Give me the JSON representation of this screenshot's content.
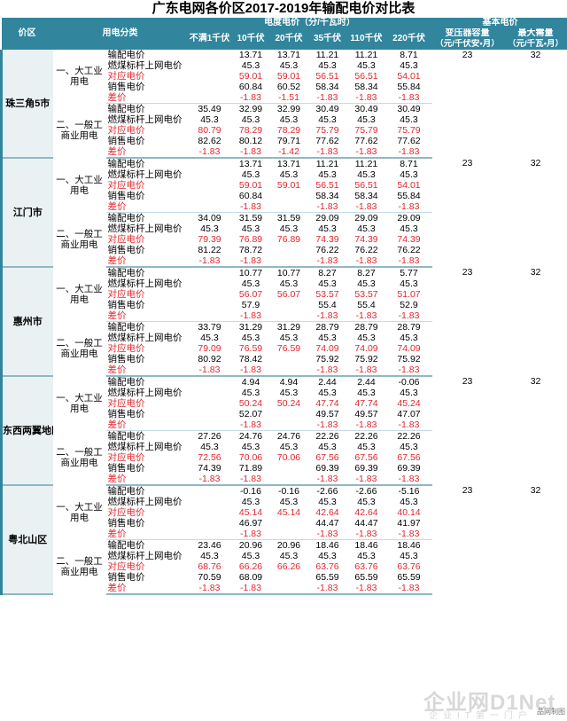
{
  "title": "广东电网各价区2017-2019年输配电价对比表",
  "header": {
    "region": "价区",
    "category": "用电分类",
    "group_voltage": "电度电价（分/千瓦时）",
    "group_basic": "基本电价",
    "v_lt1": "不满1千伏",
    "v10": "10千伏",
    "v20": "20千伏",
    "v35": "35千伏",
    "v110": "110千伏",
    "v220": "220千伏",
    "transformer": "变压器容量",
    "transformer_unit": "（元/千伏安•月）",
    "demand": "最大需量",
    "demand_unit": "（元/千瓦•月）"
  },
  "regions": [
    {
      "name": "珠三角5市",
      "groups": [
        {
          "category": "一、大工业用电",
          "transformer": "23",
          "demand": "32",
          "rows": [
            {
              "item": "输配电价",
              "red": false,
              "values": [
                "",
                "13.71",
                "13.71",
                "11.21",
                "11.21",
                "8.71"
              ]
            },
            {
              "item": "燃煤标杆上网电价",
              "red": false,
              "values": [
                "",
                "45.3",
                "45.3",
                "45.3",
                "45.3",
                "45.3"
              ]
            },
            {
              "item": "对应电价",
              "red": true,
              "values": [
                "",
                "59.01",
                "59.01",
                "56.51",
                "56.51",
                "54.01"
              ]
            },
            {
              "item": "销售电价",
              "red": false,
              "values": [
                "",
                "60.84",
                "60.52",
                "58.34",
                "58.34",
                "55.84"
              ]
            },
            {
              "item": "差价",
              "red": true,
              "values": [
                "",
                "-1.83",
                "-1.51",
                "-1.83",
                "-1.83",
                "-1.83"
              ]
            }
          ]
        },
        {
          "category": "二、一般工商业用电",
          "transformer": "",
          "demand": "",
          "rows": [
            {
              "item": "输配电价",
              "red": false,
              "values": [
                "35.49",
                "32.99",
                "32.99",
                "30.49",
                "30.49",
                "30.49"
              ]
            },
            {
              "item": "燃煤标杆上网电价",
              "red": false,
              "values": [
                "45.3",
                "45.3",
                "45.3",
                "45.3",
                "45.3",
                "45.3"
              ]
            },
            {
              "item": "对应电价",
              "red": true,
              "values": [
                "80.79",
                "78.29",
                "78.29",
                "75.79",
                "75.79",
                "75.79"
              ]
            },
            {
              "item": "销售电价",
              "red": false,
              "values": [
                "82.62",
                "80.12",
                "79.71",
                "77.62",
                "77.62",
                "77.62"
              ]
            },
            {
              "item": "差价",
              "red": true,
              "values": [
                "-1.83",
                "-1.83",
                "-1.42",
                "-1.83",
                "-1.83",
                "-1.83"
              ]
            }
          ]
        }
      ]
    },
    {
      "name": "江门市",
      "groups": [
        {
          "category": "一、大工业用电",
          "transformer": "23",
          "demand": "32",
          "rows": [
            {
              "item": "输配电价",
              "red": false,
              "values": [
                "",
                "13.71",
                "13.71",
                "11.21",
                "11.21",
                "8.71"
              ]
            },
            {
              "item": "燃煤标杆上网电价",
              "red": false,
              "values": [
                "",
                "45.3",
                "45.3",
                "45.3",
                "45.3",
                "45.3"
              ]
            },
            {
              "item": "对应电价",
              "red": true,
              "values": [
                "",
                "59.01",
                "59.01",
                "56.51",
                "56.51",
                "54.01"
              ]
            },
            {
              "item": "销售电价",
              "red": false,
              "values": [
                "",
                "60.84",
                "",
                "58.34",
                "58.34",
                "55.84"
              ]
            },
            {
              "item": "差价",
              "red": true,
              "values": [
                "",
                "-1.83",
                "",
                "-1.83",
                "-1.83",
                "-1.83"
              ]
            }
          ]
        },
        {
          "category": "二、一般工商业用电",
          "transformer": "",
          "demand": "",
          "rows": [
            {
              "item": "输配电价",
              "red": false,
              "values": [
                "34.09",
                "31.59",
                "31.59",
                "29.09",
                "29.09",
                "29.09"
              ]
            },
            {
              "item": "燃煤标杆上网电价",
              "red": false,
              "values": [
                "45.3",
                "45.3",
                "45.3",
                "45.3",
                "45.3",
                "45.3"
              ]
            },
            {
              "item": "对应电价",
              "red": true,
              "values": [
                "79.39",
                "76.89",
                "76.89",
                "74.39",
                "74.39",
                "74.39"
              ]
            },
            {
              "item": "销售电价",
              "red": false,
              "values": [
                "81.22",
                "78.72",
                "",
                "76.22",
                "76.22",
                "76.22"
              ]
            },
            {
              "item": "差价",
              "red": true,
              "values": [
                "-1.83",
                "-1.83",
                "",
                "-1.83",
                "-1.83",
                "-1.83"
              ]
            }
          ]
        }
      ]
    },
    {
      "name": "惠州市",
      "groups": [
        {
          "category": "一、大工业用电",
          "transformer": "23",
          "demand": "32",
          "rows": [
            {
              "item": "输配电价",
              "red": false,
              "values": [
                "",
                "10.77",
                "10.77",
                "8.27",
                "8.27",
                "5.77"
              ]
            },
            {
              "item": "燃煤标杆上网电价",
              "red": false,
              "values": [
                "",
                "45.3",
                "45.3",
                "45.3",
                "45.3",
                "45.3"
              ]
            },
            {
              "item": "对应电价",
              "red": true,
              "values": [
                "",
                "56.07",
                "56.07",
                "53.57",
                "53.57",
                "51.07"
              ]
            },
            {
              "item": "销售电价",
              "red": false,
              "values": [
                "",
                "57.9",
                "",
                "55.4",
                "55.4",
                "52.9"
              ]
            },
            {
              "item": "差价",
              "red": true,
              "values": [
                "",
                "-1.83",
                "",
                "-1.83",
                "-1.83",
                "-1.83"
              ]
            }
          ]
        },
        {
          "category": "二、一般工商业用电",
          "transformer": "",
          "demand": "",
          "rows": [
            {
              "item": "输配电价",
              "red": false,
              "values": [
                "33.79",
                "31.29",
                "31.29",
                "28.79",
                "28.79",
                "28.79"
              ]
            },
            {
              "item": "燃煤标杆上网电价",
              "red": false,
              "values": [
                "45.3",
                "45.3",
                "45.3",
                "45.3",
                "45.3",
                "45.3"
              ]
            },
            {
              "item": "对应电价",
              "red": true,
              "values": [
                "79.09",
                "76.59",
                "76.59",
                "74.09",
                "74.09",
                "74.09"
              ]
            },
            {
              "item": "销售电价",
              "red": false,
              "values": [
                "80.92",
                "78.42",
                "",
                "75.92",
                "75.92",
                "75.92"
              ]
            },
            {
              "item": "差价",
              "red": true,
              "values": [
                "-1.83",
                "-1.83",
                "",
                "-1.83",
                "-1.83",
                "-1.83"
              ]
            }
          ]
        }
      ]
    },
    {
      "name": "东西两翼地区",
      "groups": [
        {
          "category": "一、大工业用电",
          "transformer": "23",
          "demand": "32",
          "rows": [
            {
              "item": "输配电价",
              "red": false,
              "values": [
                "",
                "4.94",
                "4.94",
                "2.44",
                "2.44",
                "-0.06"
              ]
            },
            {
              "item": "燃煤标杆上网电价",
              "red": false,
              "values": [
                "",
                "45.3",
                "45.3",
                "45.3",
                "45.3",
                "45.3"
              ]
            },
            {
              "item": "对应电价",
              "red": true,
              "values": [
                "",
                "50.24",
                "50.24",
                "47.74",
                "47.74",
                "45.24"
              ]
            },
            {
              "item": "销售电价",
              "red": false,
              "values": [
                "",
                "52.07",
                "",
                "49.57",
                "49.57",
                "47.07"
              ]
            },
            {
              "item": "差价",
              "red": true,
              "values": [
                "",
                "-1.83",
                "",
                "-1.83",
                "-1.83",
                "-1.83"
              ]
            }
          ]
        },
        {
          "category": "二、一般工商业用电",
          "transformer": "",
          "demand": "",
          "rows": [
            {
              "item": "输配电价",
              "red": false,
              "values": [
                "27.26",
                "24.76",
                "24.76",
                "22.26",
                "22.26",
                "22.26"
              ]
            },
            {
              "item": "燃煤标杆上网电价",
              "red": false,
              "values": [
                "45.3",
                "45.3",
                "45.3",
                "45.3",
                "45.3",
                "45.3"
              ]
            },
            {
              "item": "对应电价",
              "red": true,
              "values": [
                "72.56",
                "70.06",
                "70.06",
                "67.56",
                "67.56",
                "67.56"
              ]
            },
            {
              "item": "销售电价",
              "red": false,
              "values": [
                "74.39",
                "71.89",
                "",
                "69.39",
                "69.39",
                "69.39"
              ]
            },
            {
              "item": "差价",
              "red": true,
              "values": [
                "-1.83",
                "-1.83",
                "",
                "-1.83",
                "-1.83",
                "-1.83"
              ]
            }
          ]
        }
      ]
    },
    {
      "name": "粤北山区",
      "groups": [
        {
          "category": "一、大工业用电",
          "transformer": "23",
          "demand": "32",
          "rows": [
            {
              "item": "输配电价",
              "red": false,
              "values": [
                "",
                "-0.16",
                "-0.16",
                "-2.66",
                "-2.66",
                "-5.16"
              ]
            },
            {
              "item": "燃煤标杆上网电价",
              "red": false,
              "values": [
                "",
                "45.3",
                "45.3",
                "45.3",
                "45.3",
                "45.3"
              ]
            },
            {
              "item": "对应电价",
              "red": true,
              "values": [
                "",
                "45.14",
                "45.14",
                "42.64",
                "42.64",
                "40.14"
              ]
            },
            {
              "item": "销售电价",
              "red": false,
              "values": [
                "",
                "46.97",
                "",
                "44.47",
                "44.47",
                "41.97"
              ]
            },
            {
              "item": "差价",
              "red": true,
              "values": [
                "",
                "-1.83",
                "",
                "-1.83",
                "-1.83",
                "-1.83"
              ]
            }
          ]
        },
        {
          "category": "二、一般工商业用电",
          "transformer": "",
          "demand": "",
          "rows": [
            {
              "item": "输配电价",
              "red": false,
              "values": [
                "23.46",
                "20.96",
                "20.96",
                "18.46",
                "18.46",
                "18.46"
              ]
            },
            {
              "item": "燃煤标杆上网电价",
              "red": false,
              "values": [
                "45.3",
                "45.3",
                "45.3",
                "45.3",
                "45.3",
                "45.3"
              ]
            },
            {
              "item": "对应电价",
              "red": true,
              "values": [
                "68.76",
                "66.26",
                "66.26",
                "63.76",
                "63.76",
                "63.76"
              ]
            },
            {
              "item": "销售电价",
              "red": false,
              "values": [
                "70.59",
                "68.09",
                "",
                "65.59",
                "65.59",
                "65.59"
              ]
            },
            {
              "item": "差价",
              "red": true,
              "values": [
                "-1.83",
                "-1.83",
                "",
                "-1.83",
                "-1.83",
                "-1.83"
              ]
            }
          ]
        }
      ]
    }
  ],
  "watermark": {
    "big": "企业网D1Net",
    "small": "企业IT第一门户"
  },
  "corner_text": "品网制图"
}
